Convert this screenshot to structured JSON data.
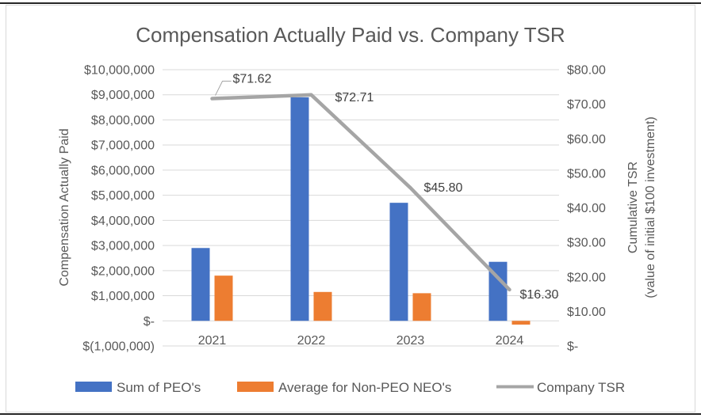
{
  "title": "Compensation Actually Paid vs. Company TSR",
  "chart_data": {
    "type": "combo",
    "categories": [
      "2021",
      "2022",
      "2023",
      "2024"
    ],
    "series": [
      {
        "name": "Sum of PEO's",
        "type": "bar",
        "axis": "left",
        "color": "#4472C4",
        "values": [
          2900000,
          8900000,
          4700000,
          2350000
        ]
      },
      {
        "name": "Average for Non-PEO NEO's",
        "type": "bar",
        "axis": "left",
        "color": "#ED7D31",
        "values": [
          1800000,
          1150000,
          1100000,
          -150000
        ]
      },
      {
        "name": "Company TSR",
        "type": "line",
        "axis": "right",
        "color": "#A5A5A5",
        "values": [
          71.62,
          72.71,
          45.8,
          16.3
        ],
        "point_labels": [
          "$71.62",
          "$72.71",
          "$45.80",
          "$16.30"
        ]
      }
    ],
    "left_axis": {
      "title": "Compensation Actually Paid",
      "min": -1000000,
      "max": 10000000,
      "step": 1000000,
      "tick_labels": [
        "$10,000,000",
        "$9,000,000",
        "$8,000,000",
        "$7,000,000",
        "$6,000,000",
        "$5,000,000",
        "$4,000,000",
        "$3,000,000",
        "$2,000,000",
        "$1,000,000",
        "$-",
        "$(1,000,000)"
      ]
    },
    "right_axis": {
      "title_line1": "Cumulative TSR",
      "title_line2": "(value of initial $100 investment)",
      "min": 0,
      "max": 80,
      "step": 10,
      "tick_labels": [
        "$80.00",
        "$70.00",
        "$60.00",
        "$50.00",
        "$40.00",
        "$30.00",
        "$20.00",
        "$10.00",
        "$-"
      ]
    },
    "grid": true,
    "legend_position": "bottom",
    "colors": {
      "grid": "#D9D9D9",
      "axis_text": "#595959",
      "title_text": "#595959",
      "data_label_text": "#404040",
      "frame_border": "#D9D9D9",
      "page_rule": "#262626"
    }
  }
}
